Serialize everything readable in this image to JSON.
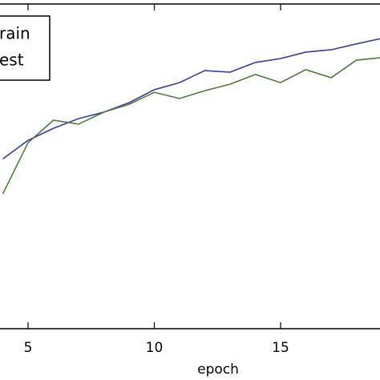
{
  "chart_data": {
    "type": "line",
    "xlabel": "epoch",
    "x": [
      4,
      5,
      6,
      7,
      8,
      9,
      10,
      11,
      12,
      13,
      14,
      15,
      16,
      17,
      18,
      19
    ],
    "series": [
      {
        "name": "rain",
        "color": "#3c3f9c",
        "values": [
          0.523,
          0.58,
          0.617,
          0.647,
          0.667,
          0.696,
          0.736,
          0.758,
          0.795,
          0.79,
          0.82,
          0.832,
          0.852,
          0.859,
          0.877,
          0.894
        ]
      },
      {
        "name": "est",
        "color": "#4f7a3c",
        "values": [
          0.415,
          0.573,
          0.642,
          0.63,
          0.667,
          0.691,
          0.728,
          0.709,
          0.733,
          0.753,
          0.783,
          0.758,
          0.798,
          0.773,
          0.827,
          0.835
        ]
      }
    ],
    "xlim": [
      0,
      20
    ],
    "xticks": [
      5,
      10,
      15
    ],
    "ylim": [
      0,
      1
    ]
  }
}
